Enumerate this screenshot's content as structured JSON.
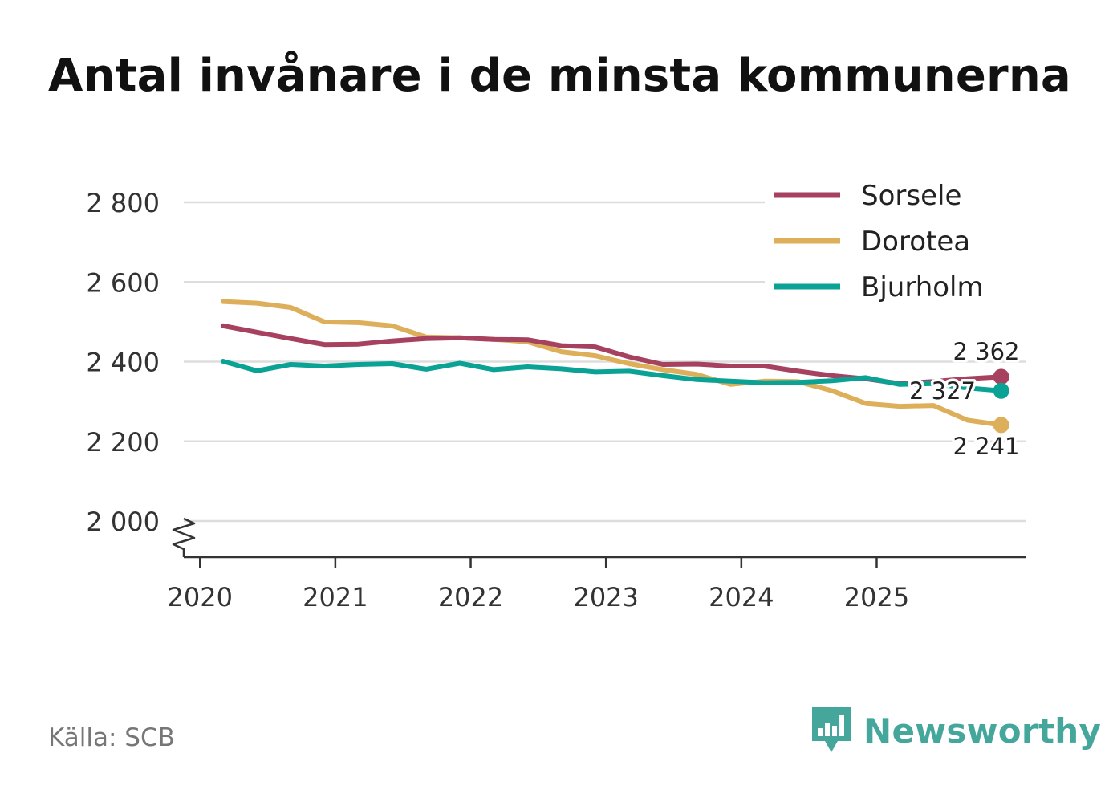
{
  "title": "Antal invånare i de minsta kommunerna",
  "source": "Källa: SCB",
  "brand": "Newsworthy",
  "colors": {
    "Sorsele": "#a6425f",
    "Dorotea": "#deaf5a",
    "Bjurholm": "#0aa295"
  },
  "chart_data": {
    "type": "line",
    "title": "Antal invånare i de minsta kommunerna",
    "xlabel": "",
    "ylabel": "",
    "ylim": [
      1920,
      2800
    ],
    "xlim": [
      2019.88,
      2026.1
    ],
    "yticks": [
      2000,
      2200,
      2400,
      2600,
      2800
    ],
    "ytick_labels": [
      "2 000",
      "2 200",
      "2 400",
      "2 600",
      "2 800"
    ],
    "xticks": [
      2020,
      2021,
      2022,
      2023,
      2024,
      2025
    ],
    "xtick_labels": [
      "2020",
      "2021",
      "2022",
      "2023",
      "2024",
      "2025"
    ],
    "legend": "top-right",
    "grid": true,
    "axis_break": "y",
    "x": [
      2020.17,
      2020.42,
      2020.67,
      2020.92,
      2021.17,
      2021.42,
      2021.67,
      2021.92,
      2022.17,
      2022.42,
      2022.67,
      2022.92,
      2023.17,
      2023.42,
      2023.67,
      2023.92,
      2024.17,
      2024.42,
      2024.67,
      2024.92,
      2025.17,
      2025.42,
      2025.67,
      2025.92
    ],
    "series": [
      {
        "name": "Sorsele",
        "values": [
          2490,
          2474,
          2458,
          2443,
          2444,
          2452,
          2458,
          2460,
          2456,
          2455,
          2440,
          2437,
          2412,
          2393,
          2394,
          2389,
          2389,
          2376,
          2365,
          2357,
          2345,
          2350,
          2357,
          2362
        ],
        "end_label": "2 362"
      },
      {
        "name": "Dorotea",
        "values": [
          2551,
          2547,
          2536,
          2500,
          2498,
          2490,
          2462,
          2460,
          2456,
          2450,
          2425,
          2415,
          2395,
          2380,
          2368,
          2343,
          2351,
          2350,
          2327,
          2295,
          2288,
          2290,
          2253,
          2241
        ],
        "end_label": "2 241"
      },
      {
        "name": "Bjurholm",
        "values": [
          2401,
          2377,
          2393,
          2389,
          2393,
          2395,
          2381,
          2396,
          2380,
          2387,
          2382,
          2374,
          2376,
          2365,
          2355,
          2351,
          2347,
          2348,
          2352,
          2360,
          2343,
          2345,
          2334,
          2327
        ],
        "end_label": "2 327"
      }
    ]
  }
}
